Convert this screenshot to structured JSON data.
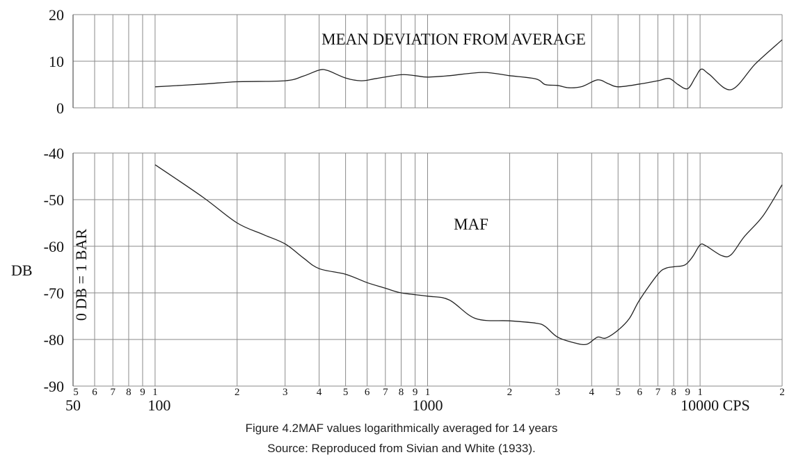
{
  "chart_data": {
    "type": "line",
    "title": "",
    "ylabel": "DB",
    "ylabel_secondary": "0 DB = 1 BAR",
    "x_scale": "log",
    "xlim": [
      50,
      20000
    ],
    "x_unit_label": "CPS",
    "x_tick_labels": {
      "minor": [
        "5",
        "6",
        "7",
        "8",
        "9",
        "1",
        "2",
        "3",
        "4",
        "5",
        "6",
        "7",
        "8",
        "9",
        "1",
        "2",
        "3",
        "4",
        "5",
        "6",
        "7",
        "8",
        "9",
        "1",
        "2"
      ],
      "major": [
        "50",
        "100",
        "1000",
        "10000 CPS"
      ]
    },
    "y_tick_labels": [
      "20",
      "10",
      "0",
      "-40",
      "-50",
      "-60",
      "-70",
      "-80",
      "-90"
    ],
    "grid": true,
    "series": [
      {
        "name": "MEAN DEVIATION FROM AVERAGE",
        "ylim": [
          0,
          20
        ],
        "points": [
          [
            100,
            4.5
          ],
          [
            150,
            5.1
          ],
          [
            200,
            5.6
          ],
          [
            300,
            5.8
          ],
          [
            350,
            6.8
          ],
          [
            400,
            8.1
          ],
          [
            430,
            8.0
          ],
          [
            500,
            6.4
          ],
          [
            570,
            5.8
          ],
          [
            650,
            6.3
          ],
          [
            800,
            7.1
          ],
          [
            900,
            6.9
          ],
          [
            1000,
            6.6
          ],
          [
            1200,
            6.9
          ],
          [
            1600,
            7.6
          ],
          [
            2000,
            6.9
          ],
          [
            2500,
            6.2
          ],
          [
            2700,
            5.0
          ],
          [
            3000,
            4.8
          ],
          [
            3300,
            4.3
          ],
          [
            3700,
            4.6
          ],
          [
            4200,
            6.0
          ],
          [
            4600,
            5.2
          ],
          [
            5000,
            4.5
          ],
          [
            6000,
            5.1
          ],
          [
            7000,
            5.8
          ],
          [
            7700,
            6.3
          ],
          [
            8300,
            5.0
          ],
          [
            9000,
            4.1
          ],
          [
            9600,
            6.5
          ],
          [
            10100,
            8.3
          ],
          [
            10800,
            7.2
          ],
          [
            13000,
            3.9
          ],
          [
            16000,
            9.5
          ],
          [
            20000,
            14.6
          ]
        ]
      },
      {
        "name": "MAF",
        "ylim": [
          -90,
          -40
        ],
        "points": [
          [
            100,
            -42.5
          ],
          [
            150,
            -49.5
          ],
          [
            200,
            -55.0
          ],
          [
            250,
            -57.5
          ],
          [
            300,
            -59.5
          ],
          [
            350,
            -62.5
          ],
          [
            400,
            -64.8
          ],
          [
            500,
            -66.0
          ],
          [
            600,
            -67.8
          ],
          [
            700,
            -69.0
          ],
          [
            800,
            -70.0
          ],
          [
            1000,
            -70.7
          ],
          [
            1200,
            -71.5
          ],
          [
            1500,
            -75.5
          ],
          [
            2000,
            -76.0
          ],
          [
            2500,
            -76.5
          ],
          [
            2700,
            -77.2
          ],
          [
            3000,
            -79.5
          ],
          [
            3500,
            -80.8
          ],
          [
            3850,
            -81.0
          ],
          [
            4200,
            -79.5
          ],
          [
            4500,
            -79.7
          ],
          [
            5000,
            -78.0
          ],
          [
            5500,
            -75.5
          ],
          [
            6000,
            -71.5
          ],
          [
            7000,
            -66.0
          ],
          [
            7500,
            -64.7
          ],
          [
            8000,
            -64.4
          ],
          [
            8800,
            -64.0
          ],
          [
            9400,
            -62.2
          ],
          [
            10000,
            -59.7
          ],
          [
            10500,
            -59.9
          ],
          [
            12000,
            -62.0
          ],
          [
            13000,
            -61.8
          ],
          [
            14500,
            -58.0
          ],
          [
            17000,
            -53.5
          ],
          [
            20000,
            -46.8
          ]
        ]
      }
    ]
  },
  "caption": {
    "line1": "Figure 4.2MAF values logarithmically averaged for 14 years",
    "line2": "Source: Reproduced from Sivian and White (1933)."
  }
}
